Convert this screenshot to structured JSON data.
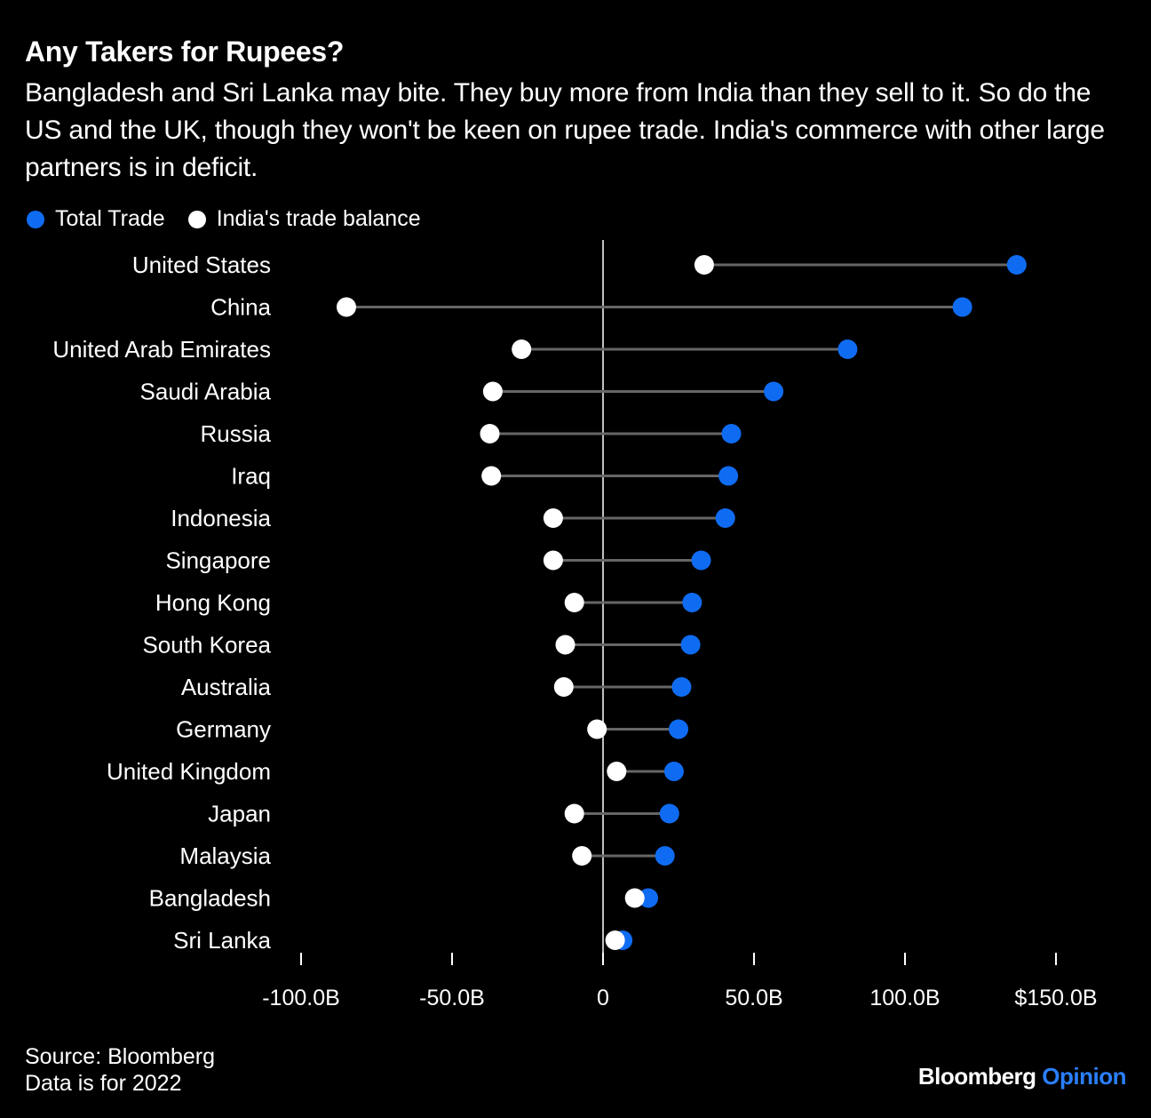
{
  "header": {
    "title": "Any Takers for Rupees?",
    "subtitle": "Bangladesh and Sri Lanka may bite. They buy more from India than they sell to it. So do the US and the UK, though they won't be keen on rupee trade. India's commerce with other large partners is in deficit."
  },
  "legend": {
    "items": [
      {
        "label": "Total Trade",
        "color": "#0f6cf2"
      },
      {
        "label": "India's trade balance",
        "color": "#ffffff"
      }
    ]
  },
  "footer": {
    "source": "Source: Bloomberg",
    "note": "Data is for 2022",
    "brand_main": "Bloomberg",
    "brand_accent": "Opinion"
  },
  "chart_data": {
    "type": "dot-plot",
    "categories": [
      "United States",
      "China",
      "United Arab Emirates",
      "Saudi Arabia",
      "Russia",
      "Iraq",
      "Indonesia",
      "Singapore",
      "Hong Kong",
      "South Korea",
      "Australia",
      "Germany",
      "United Kingdom",
      "Japan",
      "Malaysia",
      "Bangladesh",
      "Sri Lanka"
    ],
    "series": [
      {
        "name": "Total Trade",
        "color": "#0f6cf2",
        "values": [
          137,
          119,
          81,
          56.5,
          42.5,
          41.5,
          40.5,
          32.5,
          29.5,
          29,
          26,
          25,
          23.5,
          22,
          20.5,
          15,
          6.5
        ]
      },
      {
        "name": "India's trade balance",
        "color": "#ffffff",
        "values": [
          33.5,
          -85,
          -27,
          -36.5,
          -37.5,
          -37,
          -16.5,
          -16.5,
          -9.5,
          -12.5,
          -13,
          -2,
          4.5,
          -9.5,
          -7,
          10.5,
          4
        ]
      }
    ],
    "x_ticks": [
      -100,
      -50,
      0,
      50,
      100,
      150
    ],
    "x_tick_labels": [
      "-100.0B",
      "-50.0B",
      "0",
      "50.0B",
      "100.0B",
      "$150.0B"
    ],
    "xlim": [
      -100,
      150
    ],
    "grid": false,
    "legend_position": "top-left"
  }
}
